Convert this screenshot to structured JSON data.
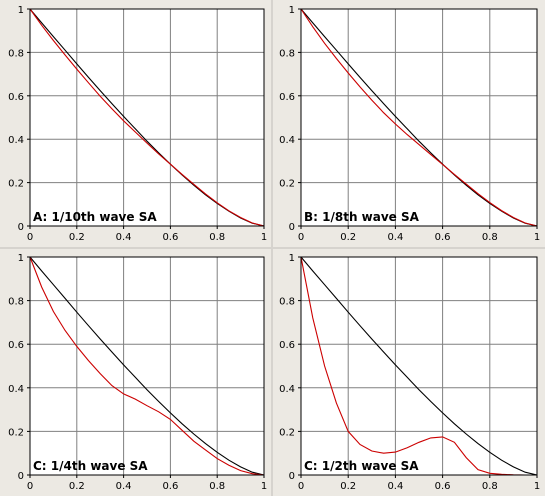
{
  "chart_data": [
    {
      "type": "line",
      "label": "A: 1/10th wave SA",
      "xlim": [
        0,
        1
      ],
      "ylim": [
        0,
        1
      ],
      "xticks": [
        "0",
        "0.2",
        "0.4",
        "0.6",
        "0.8",
        "1"
      ],
      "yticks": [
        "0",
        "0.2",
        "0.4",
        "0.6",
        "0.8",
        "1"
      ],
      "grid": true,
      "series": [
        {
          "color": "#000000",
          "x": [
            0,
            0.05,
            0.1,
            0.15,
            0.2,
            0.25,
            0.3,
            0.35,
            0.4,
            0.45,
            0.5,
            0.55,
            0.6,
            0.65,
            0.7,
            0.75,
            0.8,
            0.85,
            0.9,
            0.95,
            1
          ],
          "y": [
            1,
            0.936,
            0.873,
            0.81,
            0.747,
            0.685,
            0.624,
            0.564,
            0.505,
            0.448,
            0.391,
            0.337,
            0.285,
            0.235,
            0.188,
            0.144,
            0.104,
            0.068,
            0.037,
            0.013,
            0
          ]
        },
        {
          "color": "#cc0000",
          "x": [
            0,
            0.05,
            0.1,
            0.15,
            0.2,
            0.25,
            0.3,
            0.35,
            0.4,
            0.45,
            0.5,
            0.55,
            0.6,
            0.65,
            0.7,
            0.75,
            0.8,
            0.85,
            0.9,
            0.95,
            1
          ],
          "y": [
            1,
            0.925,
            0.855,
            0.788,
            0.723,
            0.66,
            0.598,
            0.54,
            0.485,
            0.433,
            0.382,
            0.332,
            0.285,
            0.238,
            0.192,
            0.148,
            0.107,
            0.07,
            0.039,
            0.014,
            0
          ]
        }
      ]
    },
    {
      "type": "line",
      "label": "B: 1/8th wave SA",
      "xlim": [
        0,
        1
      ],
      "ylim": [
        0,
        1
      ],
      "xticks": [
        "0",
        "0.2",
        "0.4",
        "0.6",
        "0.8",
        "1"
      ],
      "yticks": [
        "0",
        "0.2",
        "0.4",
        "0.6",
        "0.8",
        "1"
      ],
      "grid": true,
      "series": [
        {
          "color": "#000000",
          "x": [
            0,
            0.05,
            0.1,
            0.15,
            0.2,
            0.25,
            0.3,
            0.35,
            0.4,
            0.45,
            0.5,
            0.55,
            0.6,
            0.65,
            0.7,
            0.75,
            0.8,
            0.85,
            0.9,
            0.95,
            1
          ],
          "y": [
            1,
            0.936,
            0.873,
            0.81,
            0.747,
            0.685,
            0.624,
            0.564,
            0.505,
            0.448,
            0.391,
            0.337,
            0.285,
            0.235,
            0.188,
            0.144,
            0.104,
            0.068,
            0.037,
            0.013,
            0
          ]
        },
        {
          "color": "#cc0000",
          "x": [
            0,
            0.05,
            0.1,
            0.15,
            0.2,
            0.25,
            0.3,
            0.35,
            0.4,
            0.45,
            0.5,
            0.55,
            0.6,
            0.65,
            0.7,
            0.75,
            0.8,
            0.85,
            0.9,
            0.95,
            1
          ],
          "y": [
            1,
            0.918,
            0.842,
            0.772,
            0.705,
            0.641,
            0.58,
            0.522,
            0.47,
            0.421,
            0.375,
            0.329,
            0.284,
            0.238,
            0.193,
            0.149,
            0.108,
            0.071,
            0.039,
            0.014,
            0
          ]
        }
      ]
    },
    {
      "type": "line",
      "label": "C: 1/4th wave SA",
      "xlim": [
        0,
        1
      ],
      "ylim": [
        0,
        1
      ],
      "xticks": [
        "0",
        "0.2",
        "0.4",
        "0.6",
        "0.8",
        "1"
      ],
      "yticks": [
        "0",
        "0.2",
        "0.4",
        "0.6",
        "0.8",
        "1"
      ],
      "grid": true,
      "series": [
        {
          "color": "#000000",
          "x": [
            0,
            0.05,
            0.1,
            0.15,
            0.2,
            0.25,
            0.3,
            0.35,
            0.4,
            0.45,
            0.5,
            0.55,
            0.6,
            0.65,
            0.7,
            0.75,
            0.8,
            0.85,
            0.9,
            0.95,
            1
          ],
          "y": [
            1,
            0.936,
            0.873,
            0.81,
            0.747,
            0.685,
            0.624,
            0.564,
            0.505,
            0.448,
            0.391,
            0.337,
            0.285,
            0.235,
            0.188,
            0.144,
            0.104,
            0.068,
            0.037,
            0.013,
            0
          ]
        },
        {
          "color": "#cc0000",
          "x": [
            0,
            0.05,
            0.1,
            0.15,
            0.2,
            0.25,
            0.3,
            0.35,
            0.4,
            0.45,
            0.5,
            0.55,
            0.6,
            0.65,
            0.7,
            0.75,
            0.8,
            0.85,
            0.9,
            0.95,
            1
          ],
          "y": [
            1,
            0.862,
            0.75,
            0.663,
            0.59,
            0.525,
            0.465,
            0.41,
            0.372,
            0.348,
            0.318,
            0.29,
            0.255,
            0.205,
            0.155,
            0.115,
            0.075,
            0.045,
            0.02,
            0.006,
            0
          ]
        }
      ]
    },
    {
      "type": "line",
      "label": "C: 1/2th wave SA",
      "xlim": [
        0,
        1
      ],
      "ylim": [
        0,
        1
      ],
      "xticks": [
        "0",
        "0.2",
        "0.4",
        "0.6",
        "0.8",
        "1"
      ],
      "yticks": [
        "0",
        "0.2",
        "0.4",
        "0.6",
        "0.8",
        "1"
      ],
      "grid": true,
      "series": [
        {
          "color": "#000000",
          "x": [
            0,
            0.05,
            0.1,
            0.15,
            0.2,
            0.25,
            0.3,
            0.35,
            0.4,
            0.45,
            0.5,
            0.55,
            0.6,
            0.65,
            0.7,
            0.75,
            0.8,
            0.85,
            0.9,
            0.95,
            1
          ],
          "y": [
            1,
            0.936,
            0.873,
            0.81,
            0.747,
            0.685,
            0.624,
            0.564,
            0.505,
            0.448,
            0.391,
            0.337,
            0.285,
            0.235,
            0.188,
            0.144,
            0.104,
            0.068,
            0.037,
            0.013,
            0
          ]
        },
        {
          "color": "#cc0000",
          "x": [
            0,
            0.05,
            0.1,
            0.15,
            0.2,
            0.25,
            0.3,
            0.35,
            0.4,
            0.45,
            0.5,
            0.55,
            0.6,
            0.65,
            0.7,
            0.75,
            0.8,
            0.85,
            0.9,
            0.95,
            1
          ],
          "y": [
            1,
            0.72,
            0.5,
            0.33,
            0.2,
            0.14,
            0.11,
            0.1,
            0.105,
            0.125,
            0.15,
            0.17,
            0.175,
            0.15,
            0.08,
            0.025,
            0.008,
            0.003,
            0.001,
            0,
            0
          ]
        }
      ]
    }
  ]
}
